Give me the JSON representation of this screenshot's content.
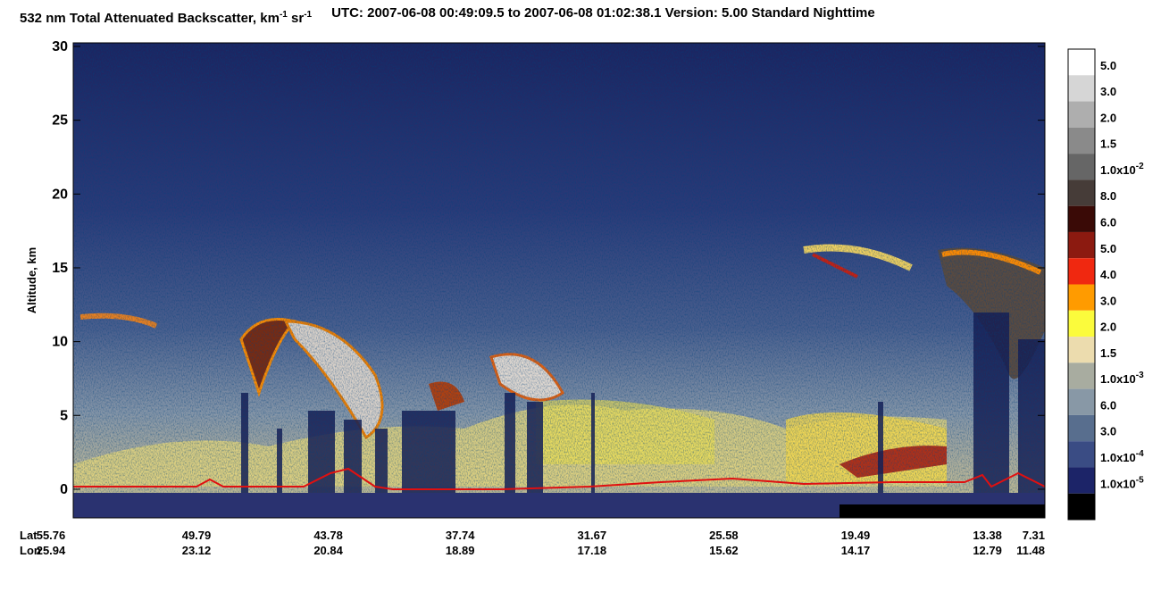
{
  "chart_data": {
    "type": "heatmap",
    "title": [
      {
        "text": "532 nm Total Attenuated Backscatter, km"
      },
      {
        "text": "-1",
        "sup": true
      },
      {
        "text": " sr"
      },
      {
        "text": "-1",
        "sup": true
      }
    ],
    "subtitle": "UTC:  2007-06-08 00:49:09.5  to  2007-06-08 01:02:38.1    Version: 5.00  Standard  Nighttime",
    "y_label": "Altitude, km",
    "ylim": [
      -2,
      30
    ],
    "yticks": [
      0,
      5,
      10,
      15,
      20,
      25,
      30
    ],
    "x_rows": [
      {
        "name": "Lat",
        "ticks": [
          55.76,
          49.79,
          43.78,
          37.74,
          31.67,
          25.58,
          19.49,
          13.38,
          7.31
        ]
      },
      {
        "name": "Lon",
        "ticks": [
          25.94,
          23.12,
          20.84,
          18.89,
          17.18,
          15.62,
          14.17,
          12.79,
          11.48
        ]
      }
    ],
    "colorbar": [
      {
        "color": "#ffffff",
        "label": "5.0"
      },
      {
        "color": "#d6d6d6",
        "label": "3.0"
      },
      {
        "color": "#aeaeae",
        "label": "2.0"
      },
      {
        "color": "#8a8a8a",
        "label": "1.5"
      },
      {
        "color": "#666666",
        "label": "1.0x10",
        "exp": "-2"
      },
      {
        "color": "#463c38",
        "label": "8.0"
      },
      {
        "color": "#3a0a06",
        "label": "6.0"
      },
      {
        "color": "#8c1a10",
        "label": "5.0"
      },
      {
        "color": "#f02810",
        "label": "4.0"
      },
      {
        "color": "#ff9b00",
        "label": "3.0"
      },
      {
        "color": "#fbfb3c",
        "label": "2.0"
      },
      {
        "color": "#ecdcae",
        "label": "1.5"
      },
      {
        "color": "#a8aca0",
        "label": "1.0x10",
        "exp": "-3"
      },
      {
        "color": "#8898a6",
        "label": "6.0"
      },
      {
        "color": "#586e8e",
        "label": "3.0"
      },
      {
        "color": "#3a4c84",
        "label": "1.0x10",
        "exp": "-4"
      },
      {
        "color": "#1c2468",
        "label": "1.0x10",
        "exp": "-5"
      },
      {
        "color": "#000000"
      }
    ]
  }
}
